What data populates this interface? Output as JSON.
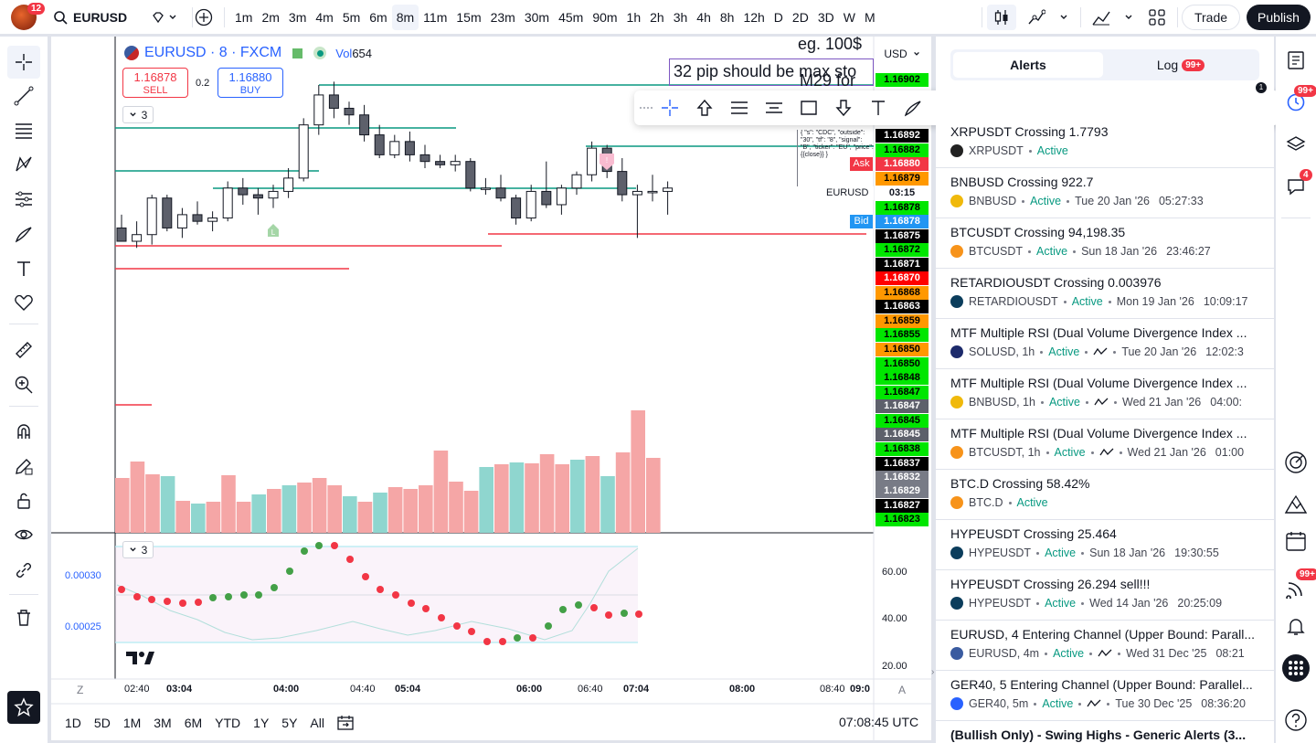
{
  "topbar": {
    "notif_count": "12",
    "symbol": "EURUSD",
    "intervals": [
      "1m",
      "2m",
      "3m",
      "4m",
      "5m",
      "6m",
      "8m",
      "11m",
      "15m",
      "23m",
      "30m",
      "45m",
      "90m",
      "1h",
      "2h",
      "3h",
      "4h",
      "8h",
      "12h",
      "D",
      "2D",
      "3D",
      "W",
      "M"
    ],
    "active_interval": "8m",
    "trade": "Trade",
    "publish": "Publish"
  },
  "legend": {
    "title": "EURUSD · 8 · FXCM",
    "vol_label": "Vol",
    "vol_value": "654",
    "sell_price": "1.16878",
    "sell_label": "SELL",
    "spread": "0.2",
    "buy_price": "1.16880",
    "buy_label": "BUY",
    "collapse_count": "3",
    "osc_collapse_count": "3"
  },
  "annotations": {
    "note1": "eg. 100$",
    "note2": "32 pip should be max sto",
    "note3": "M29 for ",
    "json_text": "{ \"s\": \"CDC\", \"outside\": \"30\", \"tf\": \"8\", \"signal\": \"B\", \"ticker\": \"EU\", \"price\": {{close}} }",
    "marker_buy": "L",
    "marker_sell": "!"
  },
  "price_scale": {
    "currency": "USD",
    "labels": [
      {
        "v": "1.16902",
        "bg": "#00e600",
        "fg": "#000"
      },
      {
        "v": "1.16892",
        "bg": "#000",
        "fg": "#fff"
      },
      {
        "v": "1.16882",
        "bg": "#00e600",
        "fg": "#000"
      },
      {
        "v": "1.16880",
        "bg": "#f23645",
        "fg": "#fff"
      },
      {
        "v": "1.16879",
        "bg": "#ff9800",
        "fg": "#000"
      },
      {
        "v": "03:15",
        "bg": "#fff",
        "fg": "#131722"
      },
      {
        "v": "1.16878",
        "bg": "#00e600",
        "fg": "#000"
      },
      {
        "v": "1.16878",
        "bg": "#2196f3",
        "fg": "#fff"
      },
      {
        "v": "1.16875",
        "bg": "#000",
        "fg": "#fff"
      },
      {
        "v": "1.16872",
        "bg": "#00e600",
        "fg": "#000"
      },
      {
        "v": "1.16871",
        "bg": "#000",
        "fg": "#fff"
      },
      {
        "v": "1.16870",
        "bg": "#ff0000",
        "fg": "#fff"
      },
      {
        "v": "1.16868",
        "bg": "#ff9800",
        "fg": "#000"
      },
      {
        "v": "1.16863",
        "bg": "#000",
        "fg": "#fff"
      },
      {
        "v": "1.16859",
        "bg": "#ff9800",
        "fg": "#000"
      },
      {
        "v": "1.16855",
        "bg": "#00e600",
        "fg": "#000"
      },
      {
        "v": "1.16850",
        "bg": "#ff9800",
        "fg": "#000"
      },
      {
        "v": "1.16850",
        "bg": "#00e600",
        "fg": "#000"
      },
      {
        "v": "1.16848",
        "bg": "#00e600",
        "fg": "#000"
      },
      {
        "v": "1.16847",
        "bg": "#00e600",
        "fg": "#000"
      },
      {
        "v": "1.16847",
        "bg": "#5d606b",
        "fg": "#fff"
      },
      {
        "v": "1.16845",
        "bg": "#00e600",
        "fg": "#000"
      },
      {
        "v": "1.16845",
        "bg": "#5d606b",
        "fg": "#fff"
      },
      {
        "v": "1.16838",
        "bg": "#00e600",
        "fg": "#000"
      },
      {
        "v": "1.16837",
        "bg": "#000",
        "fg": "#fff"
      },
      {
        "v": "1.16832",
        "bg": "#787b86",
        "fg": "#fff"
      },
      {
        "v": "1.16829",
        "bg": "#787b86",
        "fg": "#fff"
      },
      {
        "v": "1.16827",
        "bg": "#000",
        "fg": "#fff"
      },
      {
        "v": "1.16823",
        "bg": "#00e600",
        "fg": "#000"
      }
    ],
    "ask": "Ask",
    "bid": "Bid",
    "eurusd_tag": "EURUSD"
  },
  "osc": {
    "left_labels": [
      "0.00030",
      "0.00025"
    ],
    "right_labels": [
      "60.00",
      "40.00",
      "20.00"
    ]
  },
  "time_axis": {
    "z": "Z",
    "a": "A",
    "labels": [
      {
        "t": "02:40",
        "b": false
      },
      {
        "t": "03:04",
        "b": true
      },
      {
        "t": "04:00",
        "b": true
      },
      {
        "t": "04:40",
        "b": false
      },
      {
        "t": "05:04",
        "b": true
      },
      {
        "t": "06:00",
        "b": true
      },
      {
        "t": "06:40",
        "b": false
      },
      {
        "t": "07:04",
        "b": true
      },
      {
        "t": "08:00",
        "b": true
      },
      {
        "t": "08:40",
        "b": false
      },
      {
        "t": "09:0",
        "b": true
      }
    ]
  },
  "bottom": {
    "ranges": [
      "1D",
      "5D",
      "1M",
      "3M",
      "6M",
      "YTD",
      "1Y",
      "5Y",
      "All"
    ],
    "clock": "07:08:45 UTC"
  },
  "panel": {
    "tab_alerts": "Alerts",
    "tab_log": "Log",
    "log_badge": "99+",
    "status": "Active",
    "alerts": [
      {
        "title": "XRPUSDT Crossing 1.7793",
        "sym": "XRPUSDT",
        "date": "",
        "time": "",
        "coin": "#222",
        "wave": false
      },
      {
        "title": "BNBUSD Crossing 922.7",
        "sym": "BNBUSD",
        "date": "Tue 20 Jan '26",
        "time": "05:27:33",
        "coin": "#f0b90b",
        "wave": false
      },
      {
        "title": "BTCUSDT Crossing 94,198.35",
        "sym": "BTCUSDT",
        "date": "Sun 18 Jan '26",
        "time": "23:46:27",
        "coin": "#f7931a",
        "wave": false
      },
      {
        "title": "RETARDIOUSDT Crossing 0.003976",
        "sym": "RETARDIOUSDT",
        "date": "Mon 19 Jan '26",
        "time": "10:09:17",
        "coin": "#0b3d5c",
        "wave": false
      },
      {
        "title": "MTF Multiple RSI (Dual Volume Divergence Index ...",
        "sym": "SOLUSD, 1h",
        "date": "Tue 20 Jan '26",
        "time": "12:02:3",
        "coin": "#1d2a6b",
        "wave": true
      },
      {
        "title": "MTF Multiple RSI (Dual Volume Divergence Index ...",
        "sym": "BNBUSD, 1h",
        "date": "Wed 21 Jan '26",
        "time": "04:00:",
        "coin": "#f0b90b",
        "wave": true
      },
      {
        "title": "MTF Multiple RSI (Dual Volume Divergence Index ...",
        "sym": "BTCUSDT, 1h",
        "date": "Wed 21 Jan '26",
        "time": "01:00",
        "coin": "#f7931a",
        "wave": true
      },
      {
        "title": "BTC.D Crossing 58.42%",
        "sym": "BTC.D",
        "date": "",
        "time": "",
        "coin": "#f7931a",
        "wave": false
      },
      {
        "title": "HYPEUSDT Crossing 25.464",
        "sym": "HYPEUSDT",
        "date": "Sun 18 Jan '26",
        "time": "19:30:55",
        "coin": "#0b3d5c",
        "wave": false
      },
      {
        "title": "HYPEUSDT Crossing 26.294 sell!!!",
        "sym": "HYPEUSDT",
        "date": "Wed 14 Jan '26",
        "time": "20:25:09",
        "coin": "#0b3d5c",
        "wave": false
      },
      {
        "title": "EURUSD, 4 Entering Channel (Upper Bound: Parall...",
        "sym": "EURUSD, 4m",
        "date": "Wed 31 Dec '25",
        "time": "08:21",
        "coin": "#3a5ba0",
        "wave": true
      },
      {
        "title": "GER40, 5 Entering Channel (Upper Bound: Parallel...",
        "sym": "GER40, 5m",
        "date": "Tue 30 Dec '25",
        "time": "08:36:20",
        "coin": "#2962ff",
        "wave": true
      },
      {
        "title": "(Bullish Only) - Swing Highs - Generic Alerts (3...",
        "sym": "",
        "date": "",
        "time": "",
        "coin": "#fff",
        "wave": false
      }
    ]
  },
  "rightbar": {
    "badge_top": "99+",
    "badge_chat": "4",
    "badge_feed": "99+",
    "float_badge": "1"
  },
  "colors": {
    "up": "#089981",
    "down": "#f23645",
    "accent": "#2962ff"
  }
}
